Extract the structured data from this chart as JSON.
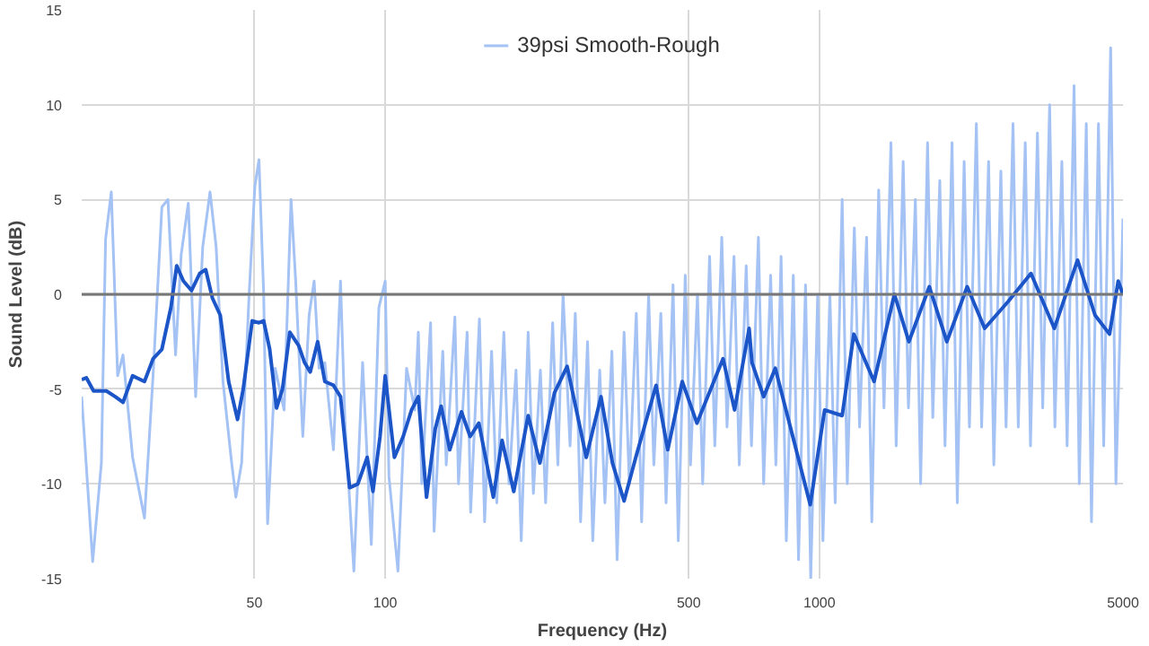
{
  "chart_data": {
    "type": "line",
    "xlabel": "Frequency (Hz)",
    "ylabel": "Sound Level (dB)",
    "log": "x",
    "xlim": [
      20,
      5000
    ],
    "xticks": [
      50,
      100,
      500,
      1000,
      5000
    ],
    "ylim": [
      -15,
      15
    ],
    "yticks": [
      -15,
      -10,
      -5,
      0,
      5,
      10,
      15
    ],
    "grid": true,
    "legend": "top",
    "line_style": "solid",
    "ref_lines": [
      {
        "axis": "y",
        "value": 0,
        "color": "#777777"
      }
    ],
    "series": [
      {
        "name": "39psi Smooth-Rough",
        "color": "#a4c2f4",
        "x": [
          20,
          21.2,
          22.2,
          22.7,
          23.4,
          24.2,
          24.9,
          26.2,
          27.9,
          29.2,
          30.6,
          31.6,
          32.9,
          33.9,
          35.2,
          36.6,
          38.0,
          39.5,
          40.8,
          42.3,
          44.3,
          45.3,
          46.7,
          48.6,
          50.1,
          51.2,
          52.5,
          53.6,
          55.8,
          58.5,
          60.7,
          62.2,
          64.6,
          66.8,
          68.6,
          70.4,
          72.6,
          76.0,
          78.9,
          80.8,
          84.7,
          88.7,
          92.9,
          96.7,
          100,
          102,
          107,
          112,
          117,
          119.2,
          121.4,
          127.2,
          129.6,
          135.7,
          138.2,
          144.7,
          147.5,
          154.4,
          157.3,
          164.8,
          169.4,
          175.8,
          180.7,
          187.6,
          192.8,
          200.1,
          205.7,
          213.4,
          219.4,
          227.7,
          234.1,
          243.0,
          249.8,
          256.8,
          266.5,
          274.0,
          281.8,
          292.4,
          300.6,
          311.9,
          320.6,
          332.7,
          342.0,
          354.9,
          364.9,
          378.6,
          389.5,
          404.2,
          415.6,
          431.3,
          443.4,
          460.1,
          473.1,
          490.9,
          504.7,
          523.7,
          538.4,
          558.5,
          574.2,
          595.8,
          612.6,
          635.7,
          653.6,
          678.2,
          697.3,
          723.5,
          743.9,
          772.0,
          793.7,
          815.9,
          838.9,
          870.6,
          895.0,
          928.8,
          954.8,
          990.8,
          1018.6,
          1057,
          1087,
          1128,
          1159,
          1203,
          1237,
          1284,
          1320,
          1369,
          1408,
          1461,
          1502,
          1559,
          1603,
          1663,
          1710,
          1774,
          1824,
          1893,
          1946,
          2020,
          2077,
          2154,
          2215,
          2298,
          2363,
          2452,
          2521,
          2617,
          2690,
          2791,
          2870,
          2978,
          3062,
          3177,
          3267,
          3389,
          3485,
          3616,
          3718,
          3858,
          3966,
          4116,
          4231,
          4391,
          4514,
          4684,
          4817,
          5000
        ],
        "values": [
          -5.4,
          -14.1,
          -8.9,
          2.9,
          5.4,
          -4.3,
          -3.2,
          -8.6,
          -11.8,
          -4.3,
          4.6,
          5,
          -3.2,
          2.1,
          4.8,
          -5.4,
          2.5,
          5.4,
          2.5,
          -4.6,
          -8.9,
          -10.7,
          -8.9,
          0,
          5.7,
          7.1,
          0,
          -12.1,
          -3.9,
          -6.1,
          5,
          0.7,
          -7.5,
          -1.1,
          0.7,
          -3.9,
          -3.6,
          -8.2,
          0.7,
          -6.8,
          -14.6,
          -3.6,
          -13.2,
          -0.7,
          0.7,
          -9.6,
          -14.6,
          -3.9,
          -6.1,
          -2,
          -10,
          -1.5,
          -12.5,
          -3,
          -9,
          -1.2,
          -10,
          -2,
          -11.5,
          -1.3,
          -12,
          -3,
          -11,
          -2,
          -10,
          -4,
          -13,
          -2,
          -10.5,
          -4,
          -11,
          -1.5,
          -9,
          0,
          -8,
          -1,
          -12,
          -2.5,
          -13,
          -4,
          -11,
          -3,
          -14,
          -2,
          -10,
          -1,
          -12,
          0,
          -9,
          -1,
          -11,
          0.5,
          -13,
          1,
          -9,
          0,
          -10,
          2,
          -8,
          3,
          -7,
          2,
          -9,
          1.5,
          -8,
          3,
          -10,
          1,
          -9,
          2,
          -13,
          1,
          -14,
          0.5,
          -15,
          0,
          -13,
          0,
          -11,
          5,
          -10,
          3.5,
          -7,
          3,
          -12,
          5.5,
          -6,
          8,
          -8,
          7,
          -6,
          5,
          -10,
          8,
          -6.5,
          6,
          -8,
          8,
          -11,
          7,
          -7,
          9,
          -7,
          7,
          -9,
          6.5,
          -7,
          9,
          -7,
          8,
          -8,
          8.5,
          -6,
          10,
          -7,
          7,
          -8,
          11,
          -10,
          9,
          -12,
          9,
          -8,
          13,
          -10,
          4
        ]
      },
      {
        "color": "#1c55c8",
        "x": [
          20,
          20.5,
          21.3,
          22.8,
          23.9,
          24.9,
          26.2,
          27.9,
          29.2,
          30.6,
          32.1,
          33.1,
          34.3,
          35.8,
          37.4,
          38.6,
          40.0,
          41.7,
          43.6,
          45.7,
          47.1,
          49.4,
          51.2,
          52.5,
          54.2,
          56.2,
          58.0,
          60.3,
          63.2,
          65.2,
          67.2,
          69.9,
          72.6,
          76.0,
          78.9,
          82.8,
          86.5,
          90.9,
          93.7,
          97.3,
          100,
          105,
          110,
          115,
          119.2,
          124.5,
          130.4,
          134.5,
          140.8,
          149.8,
          156.9,
          164.3,
          177.4,
          185.8,
          197.7,
          213.4,
          227.1,
          245.3,
          262.4,
          277.3,
          290.4,
          314.0,
          333.7,
          354.9,
          377.6,
          420.5,
          447.4,
          483.1,
          522.2,
          599.8,
          637.6,
          688.8,
          699.2,
          743.9,
          791.3,
          868.1,
          952.2,
          1028,
          1128,
          1200,
          1336,
          1488,
          1607,
          1791,
          1965,
          2189,
          2401,
          2715,
          3070,
          3474,
          3930,
          4311,
          4656,
          4875,
          5000
        ],
        "values": [
          -4.5,
          -4.4,
          -5.1,
          -5.1,
          -5.4,
          -5.7,
          -4.3,
          -4.6,
          -3.4,
          -2.9,
          -0.7,
          1.5,
          0.7,
          0.2,
          1.1,
          1.3,
          -0.2,
          -1.1,
          -4.6,
          -6.6,
          -5,
          -1.4,
          -1.5,
          -1.4,
          -2.9,
          -6,
          -5,
          -2,
          -2.7,
          -3.6,
          -4.1,
          -2.5,
          -4.6,
          -4.8,
          -5.4,
          -10.2,
          -10,
          -8.6,
          -10.4,
          -7.5,
          -4.3,
          -8.6,
          -7.5,
          -6.1,
          -5.4,
          -10.7,
          -7.1,
          -5.9,
          -8.2,
          -6.2,
          -7.5,
          -6.8,
          -10.7,
          -7.7,
          -10.4,
          -6.4,
          -8.9,
          -5.2,
          -3.8,
          -6.4,
          -8.6,
          -5.4,
          -8.9,
          -10.9,
          -8.6,
          -4.8,
          -8.2,
          -4.6,
          -6.8,
          -3.4,
          -6.1,
          -1.8,
          -3.6,
          -5.4,
          -3.9,
          -7.5,
          -11.1,
          -6.1,
          -6.4,
          -2.1,
          -4.6,
          0,
          -2.5,
          0.4,
          -2.5,
          0.4,
          -1.8,
          -0.4,
          1.1,
          -1.8,
          1.8,
          -1.1,
          -2.1,
          0.7,
          0
        ]
      }
    ]
  }
}
